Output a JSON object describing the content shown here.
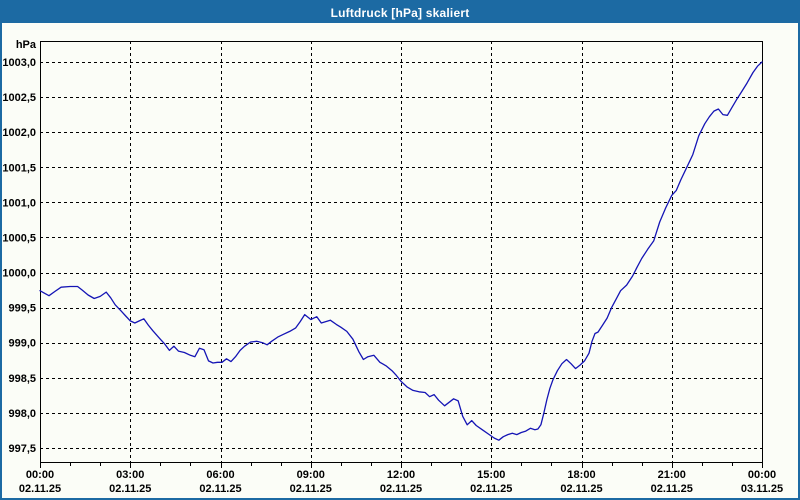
{
  "window": {
    "title": "Luftdruck [hPa] skaliert"
  },
  "theme": {
    "titlebar_color": "#1c6aa3",
    "window_border_color": "#1c6aa3",
    "content_bg": "#fbfdf7",
    "line_color": "#1515b5",
    "grid_color": "#000000",
    "axis_color": "#000000",
    "text_color": "#000000",
    "title_text_color": "#ffffff"
  },
  "chart_data": {
    "type": "line",
    "title": "Luftdruck [hPa] skaliert",
    "unit_label": "hPa",
    "grid": "dashed",
    "legend": "none",
    "y_axis": {
      "min": 997.5,
      "max": 1003.0,
      "step": 0.5,
      "tick_labels": [
        "1003,0",
        "1002,5",
        "1002,0",
        "1001,5",
        "1001,0",
        "1000,5",
        "1000,0",
        "999,5",
        "999,0",
        "998,5",
        "998,0",
        "997,5"
      ]
    },
    "x_axis": {
      "hours_span": 24,
      "major_step_hours": 3,
      "minor_step_hours": 1,
      "ticks": [
        {
          "time": "00:00",
          "date": "02.11.25"
        },
        {
          "time": "03:00",
          "date": "02.11.25"
        },
        {
          "time": "06:00",
          "date": "02.11.25"
        },
        {
          "time": "09:00",
          "date": "02.11.25"
        },
        {
          "time": "12:00",
          "date": "02.11.25"
        },
        {
          "time": "15:00",
          "date": "02.11.25"
        },
        {
          "time": "18:00",
          "date": "02.11.25"
        },
        {
          "time": "21:00",
          "date": "02.11.25"
        },
        {
          "time": "00:00",
          "date": "03.11.25"
        }
      ]
    },
    "series": [
      {
        "name": "Luftdruck",
        "points": [
          [
            0,
            999.74
          ],
          [
            0.17,
            999.7
          ],
          [
            0.3,
            999.67
          ],
          [
            0.5,
            999.73
          ],
          [
            0.7,
            999.79
          ],
          [
            1,
            999.8
          ],
          [
            1.25,
            999.8
          ],
          [
            1.4,
            999.75
          ],
          [
            1.6,
            999.68
          ],
          [
            1.8,
            999.63
          ],
          [
            2,
            999.66
          ],
          [
            2.2,
            999.72
          ],
          [
            2.35,
            999.64
          ],
          [
            2.5,
            999.54
          ],
          [
            2.7,
            999.45
          ],
          [
            2.85,
            999.38
          ],
          [
            3,
            999.31
          ],
          [
            3.15,
            999.28
          ],
          [
            3.3,
            999.31
          ],
          [
            3.45,
            999.34
          ],
          [
            3.6,
            999.25
          ],
          [
            3.75,
            999.17
          ],
          [
            4,
            999.05
          ],
          [
            4.15,
            998.98
          ],
          [
            4.3,
            998.89
          ],
          [
            4.45,
            998.95
          ],
          [
            4.6,
            998.88
          ],
          [
            4.8,
            998.86
          ],
          [
            5,
            998.82
          ],
          [
            5.15,
            998.8
          ],
          [
            5.3,
            998.92
          ],
          [
            5.45,
            998.9
          ],
          [
            5.6,
            998.74
          ],
          [
            5.75,
            998.71
          ],
          [
            5.9,
            998.72
          ],
          [
            6.05,
            998.72
          ],
          [
            6.2,
            998.77
          ],
          [
            6.35,
            998.73
          ],
          [
            6.5,
            998.8
          ],
          [
            6.65,
            998.89
          ],
          [
            6.8,
            998.95
          ],
          [
            7,
            999.01
          ],
          [
            7.2,
            999.02
          ],
          [
            7.4,
            999.0
          ],
          [
            7.55,
            998.97
          ],
          [
            7.7,
            999.02
          ],
          [
            7.9,
            999.08
          ],
          [
            8.1,
            999.12
          ],
          [
            8.3,
            999.16
          ],
          [
            8.5,
            999.21
          ],
          [
            8.65,
            999.3
          ],
          [
            8.8,
            999.4
          ],
          [
            9,
            999.33
          ],
          [
            9.2,
            999.37
          ],
          [
            9.35,
            999.28
          ],
          [
            9.5,
            999.3
          ],
          [
            9.65,
            999.32
          ],
          [
            9.85,
            999.26
          ],
          [
            10,
            999.22
          ],
          [
            10.2,
            999.16
          ],
          [
            10.4,
            999.05
          ],
          [
            10.6,
            998.87
          ],
          [
            10.75,
            998.76
          ],
          [
            10.9,
            998.8
          ],
          [
            11.1,
            998.82
          ],
          [
            11.3,
            998.72
          ],
          [
            11.5,
            998.67
          ],
          [
            11.7,
            998.6
          ],
          [
            11.85,
            998.53
          ],
          [
            12,
            998.45
          ],
          [
            12.2,
            998.37
          ],
          [
            12.4,
            998.32
          ],
          [
            12.6,
            998.3
          ],
          [
            12.8,
            998.29
          ],
          [
            12.95,
            998.23
          ],
          [
            13.1,
            998.26
          ],
          [
            13.25,
            998.18
          ],
          [
            13.45,
            998.1
          ],
          [
            13.6,
            998.15
          ],
          [
            13.75,
            998.2
          ],
          [
            13.9,
            998.17
          ],
          [
            14.05,
            997.95
          ],
          [
            14.2,
            997.83
          ],
          [
            14.35,
            997.89
          ],
          [
            14.5,
            997.82
          ],
          [
            14.7,
            997.76
          ],
          [
            14.9,
            997.7
          ],
          [
            15.1,
            997.64
          ],
          [
            15.25,
            997.61
          ],
          [
            15.4,
            997.66
          ],
          [
            15.55,
            997.69
          ],
          [
            15.7,
            997.71
          ],
          [
            15.85,
            997.69
          ],
          [
            16,
            997.72
          ],
          [
            16.15,
            997.74
          ],
          [
            16.3,
            997.78
          ],
          [
            16.45,
            997.76
          ],
          [
            16.55,
            997.77
          ],
          [
            16.65,
            997.83
          ],
          [
            16.75,
            998.0
          ],
          [
            16.85,
            998.19
          ],
          [
            16.95,
            998.35
          ],
          [
            17.05,
            998.47
          ],
          [
            17.2,
            998.6
          ],
          [
            17.35,
            998.7
          ],
          [
            17.5,
            998.76
          ],
          [
            17.65,
            998.7
          ],
          [
            17.8,
            998.63
          ],
          [
            17.95,
            998.68
          ],
          [
            18.1,
            998.74
          ],
          [
            18.25,
            998.85
          ],
          [
            18.35,
            999.02
          ],
          [
            18.45,
            999.13
          ],
          [
            18.55,
            999.15
          ],
          [
            18.7,
            999.25
          ],
          [
            18.85,
            999.35
          ],
          [
            19,
            999.5
          ],
          [
            19.15,
            999.62
          ],
          [
            19.3,
            999.74
          ],
          [
            19.5,
            999.82
          ],
          [
            19.7,
            999.95
          ],
          [
            19.85,
            1000.08
          ],
          [
            20,
            1000.2
          ],
          [
            20.2,
            1000.33
          ],
          [
            20.4,
            1000.45
          ],
          [
            20.6,
            1000.72
          ],
          [
            20.8,
            1000.92
          ],
          [
            21,
            1001.1
          ],
          [
            21.15,
            1001.17
          ],
          [
            21.3,
            1001.32
          ],
          [
            21.5,
            1001.5
          ],
          [
            21.7,
            1001.68
          ],
          [
            21.9,
            1001.95
          ],
          [
            22.1,
            1002.12
          ],
          [
            22.25,
            1002.22
          ],
          [
            22.4,
            1002.3
          ],
          [
            22.55,
            1002.33
          ],
          [
            22.7,
            1002.25
          ],
          [
            22.85,
            1002.24
          ],
          [
            23,
            1002.35
          ],
          [
            23.15,
            1002.46
          ],
          [
            23.3,
            1002.56
          ],
          [
            23.5,
            1002.7
          ],
          [
            23.7,
            1002.85
          ],
          [
            23.85,
            1002.94
          ],
          [
            24,
            1003.0
          ]
        ]
      }
    ]
  }
}
